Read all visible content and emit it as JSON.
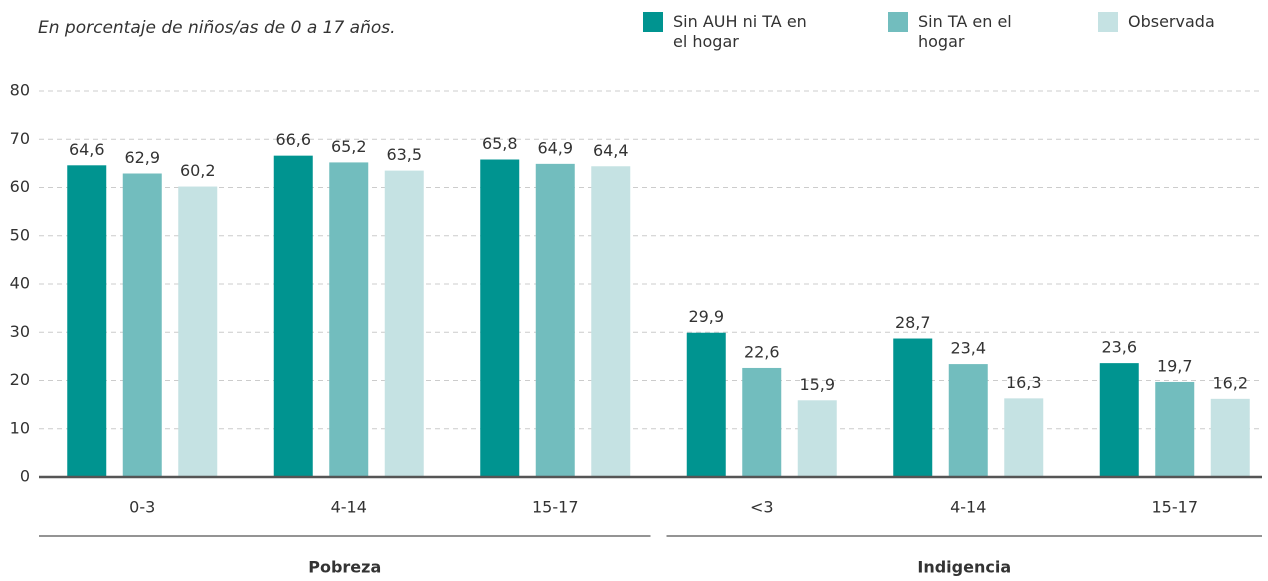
{
  "chart_data": {
    "type": "bar",
    "subtitle": "En porcentaje de niños/as de 0 a 17 años.",
    "groups": [
      {
        "name": "Pobreza",
        "categories": [
          "0-3",
          "4-14",
          "15-17"
        ]
      },
      {
        "name": "Indigencia",
        "categories": [
          "<3",
          "4-14",
          "15-17"
        ]
      }
    ],
    "series": [
      {
        "name": "Sin AUH ni TA en el hogar",
        "color": "#009490",
        "values": [
          64.6,
          66.6,
          65.8,
          29.9,
          28.7,
          23.6
        ],
        "value_labels": [
          "64,6",
          "66,6",
          "65,8",
          "29,9",
          "28,7",
          "23,6"
        ]
      },
      {
        "name": "Sin TA en el hogar",
        "color": "#72bdbe",
        "values": [
          62.9,
          65.2,
          64.9,
          22.6,
          23.4,
          19.7
        ],
        "value_labels": [
          "62,9",
          "65,2",
          "64,9",
          "22,6",
          "23,4",
          "19,7"
        ]
      },
      {
        "name": "Observada",
        "color": "#c5e2e3",
        "values": [
          60.2,
          63.5,
          64.4,
          15.9,
          16.3,
          16.2
        ],
        "value_labels": [
          "60,2",
          "63,5",
          "64,4",
          "15,9",
          "16,3",
          "16,2"
        ]
      }
    ],
    "ylim": [
      0,
      80
    ],
    "yticks": [
      0,
      10,
      20,
      30,
      40,
      50,
      60,
      70,
      80
    ],
    "grid": true,
    "legend": "top-right"
  }
}
